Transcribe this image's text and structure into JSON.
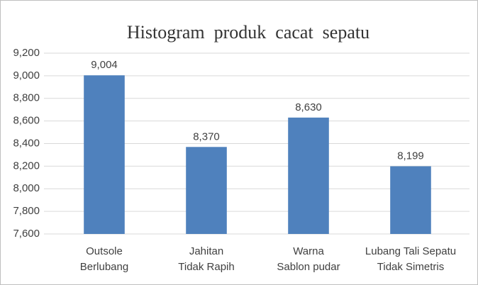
{
  "chart_data": {
    "type": "bar",
    "title": "Histogram  produk  cacat  sepatu",
    "categories": [
      [
        "Outsole",
        "Berlubang"
      ],
      [
        "Jahitan",
        "Tidak Rapih"
      ],
      [
        "Warna",
        "Sablon pudar"
      ],
      [
        "Lubang Tali Sepatu",
        "Tidak Simetris"
      ]
    ],
    "values": [
      9004,
      8370,
      8630,
      8199
    ],
    "value_labels": [
      "9,004",
      "8,370",
      "8,630",
      "8,199"
    ],
    "color": "#4f81bd",
    "ylim": [
      7600,
      9200
    ],
    "yticks": [
      {
        "value": 7600,
        "label": "7,600"
      },
      {
        "value": 7800,
        "label": "7,800"
      },
      {
        "value": 8000,
        "label": "8,000"
      },
      {
        "value": 8200,
        "label": "8,200"
      },
      {
        "value": 8400,
        "label": "8,400"
      },
      {
        "value": 8600,
        "label": "8,600"
      },
      {
        "value": 8800,
        "label": "8,800"
      },
      {
        "value": 9000,
        "label": "9,000"
      },
      {
        "value": 9200,
        "label": "9,200"
      }
    ],
    "grid": true
  }
}
